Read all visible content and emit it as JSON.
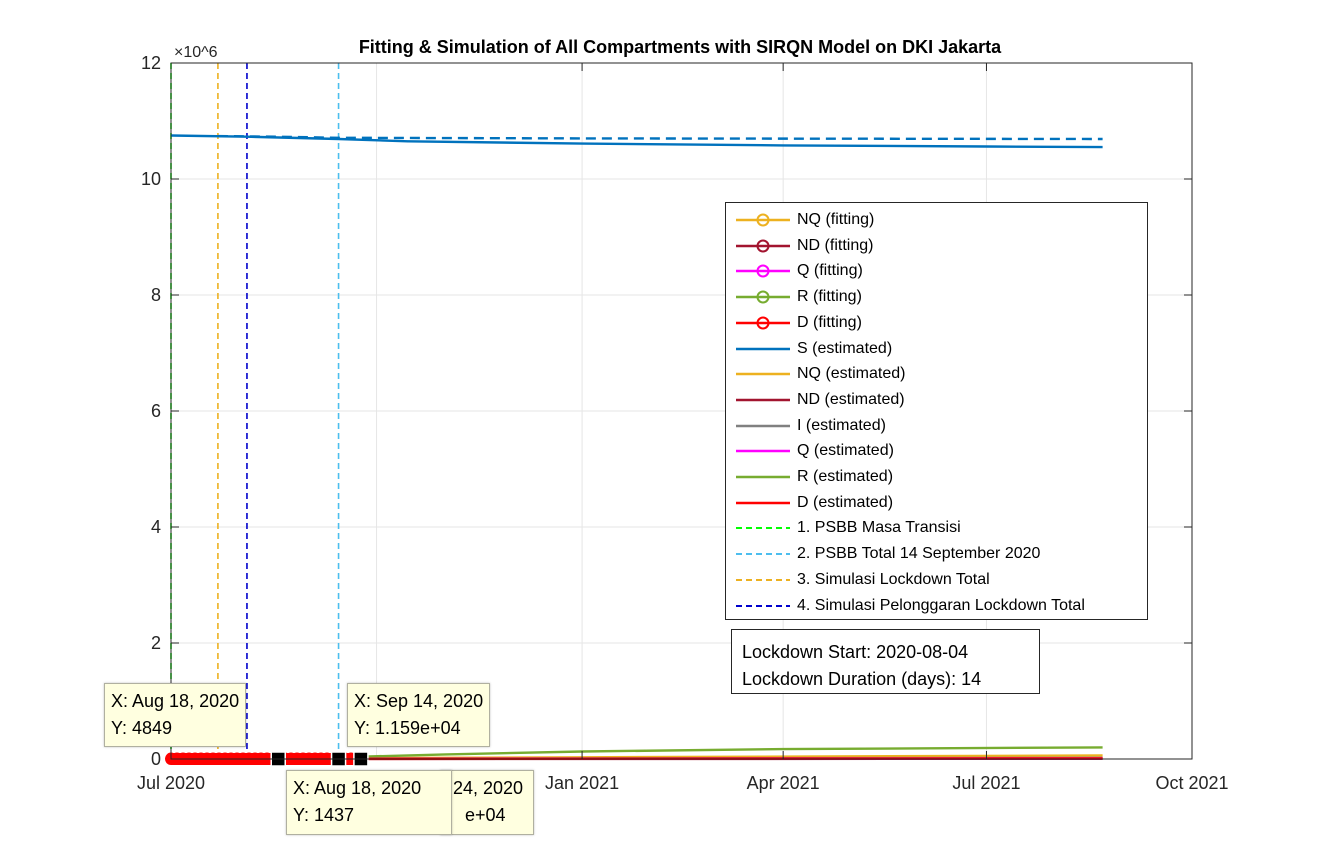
{
  "chart_data": {
    "type": "line",
    "title": "Fitting & Simulation of All Compartments with SIRQN Model on DKI Jakarta",
    "xlabel": "",
    "ylabel": "",
    "y_exponent": "×10^6",
    "x_ticks": [
      "Jul 2020",
      "Jan 2021",
      "Apr 2021",
      "Jul 2021",
      "Oct 2021"
    ],
    "y_ticks": [
      "0",
      "2",
      "4",
      "6",
      "8",
      "10",
      "12"
    ],
    "ylim": [
      0,
      12
    ],
    "xlim": [
      "2020-07-01",
      "2021-10-01"
    ],
    "grid": true,
    "legend_position": "inside right",
    "series": [
      {
        "name": "NQ (fitting)",
        "color": "#EDB120",
        "style": "solid-marker"
      },
      {
        "name": "ND (fitting)",
        "color": "#A2142F",
        "style": "solid-marker"
      },
      {
        "name": "Q (fitting)",
        "color": "#FF00FF",
        "style": "solid-marker"
      },
      {
        "name": "R (fitting)",
        "color": "#77AC30",
        "style": "solid-marker"
      },
      {
        "name": "D (fitting)",
        "color": "#FF0000",
        "style": "solid-marker"
      },
      {
        "name": "S (estimated)",
        "color": "#0072BD",
        "style": "solid",
        "points": [
          [
            "2020-07-01",
            10.75
          ],
          [
            "2020-08-04",
            10.73
          ],
          [
            "2020-09-14",
            10.69
          ],
          [
            "2020-10-15",
            10.65
          ],
          [
            "2021-01-01",
            10.61
          ],
          [
            "2021-04-01",
            10.58
          ],
          [
            "2021-07-01",
            10.56
          ],
          [
            "2021-08-22",
            10.55
          ]
        ]
      },
      {
        "name": "NQ (estimated)",
        "color": "#EDB120",
        "style": "solid",
        "points": [
          [
            "2020-07-01",
            0.005
          ],
          [
            "2020-09-14",
            0.012
          ],
          [
            "2021-01-01",
            0.03
          ],
          [
            "2021-08-22",
            0.06
          ]
        ]
      },
      {
        "name": "ND (estimated)",
        "color": "#A2142F",
        "style": "solid",
        "points": [
          [
            "2020-07-01",
            0.0
          ],
          [
            "2021-08-22",
            0.004
          ]
        ]
      },
      {
        "name": "I (estimated)",
        "color": "#808080",
        "style": "solid",
        "points": [
          [
            "2020-07-01",
            0.003
          ],
          [
            "2021-08-22",
            0.02
          ]
        ]
      },
      {
        "name": "Q (estimated)",
        "color": "#FF00FF",
        "style": "solid",
        "points": [
          [
            "2020-07-01",
            0.002
          ],
          [
            "2021-08-22",
            0.01
          ]
        ]
      },
      {
        "name": "R (estimated)",
        "color": "#77AC30",
        "style": "solid",
        "points": [
          [
            "2020-07-01",
            0.0
          ],
          [
            "2020-09-14",
            0.03
          ],
          [
            "2020-11-01",
            0.08
          ],
          [
            "2021-01-01",
            0.13
          ],
          [
            "2021-04-01",
            0.17
          ],
          [
            "2021-08-22",
            0.2
          ]
        ]
      },
      {
        "name": "D (estimated)",
        "color": "#FF0000",
        "style": "solid",
        "points": [
          [
            "2020-07-01",
            0.0
          ],
          [
            "2021-08-22",
            0.01
          ]
        ]
      },
      {
        "name": "1. PSBB Masa Transisi",
        "color": "#00FF00",
        "style": "dashed-vline",
        "x": "2020-07-01"
      },
      {
        "name": "2. PSBB Total 14 September 2020",
        "color": "#4DBEEE",
        "style": "dashed-vline",
        "x": "2020-09-14"
      },
      {
        "name": "3. Simulasi Lockdown Total",
        "color": "#EDB120",
        "style": "dashed-vline",
        "x": "2020-07-22"
      },
      {
        "name": "4. Simulasi Pelonggaran Lockdown Total",
        "color": "#0000CC",
        "style": "dashed-vline",
        "x": "2020-08-04"
      }
    ],
    "S_dashed_simulation": {
      "color": "#0072BD",
      "points": [
        [
          "2020-07-22",
          10.74
        ],
        [
          "2020-08-18",
          10.73
        ],
        [
          "2020-09-14",
          10.71
        ],
        [
          "2021-01-01",
          10.7
        ],
        [
          "2021-08-22",
          10.69
        ]
      ]
    }
  },
  "info_box": {
    "line1": "Lockdown Start: 2020-08-04",
    "line2": "Lockdown Duration (days): 14"
  },
  "datatips": [
    {
      "x_label": "X: Aug 18, 2020",
      "y_label": "Y: 4849"
    },
    {
      "x_label": "X: Sep 14, 2020",
      "y_label": "Y: 1.159e+04"
    },
    {
      "x_label": "X: Aug 18, 2020",
      "y_label": "Y: 1437"
    },
    {
      "x_label": "24, 2020",
      "y_label": "e+04"
    }
  ]
}
